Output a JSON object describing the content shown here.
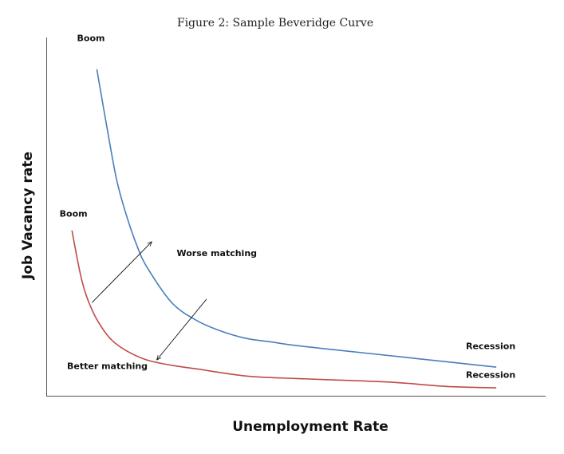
{
  "caption": "Figure 2: Sample Beveridge Curve",
  "chart_data": {
    "type": "line",
    "title": "",
    "xlabel": "Unemployment Rate",
    "ylabel": "Job Vacancy rate",
    "xlim": [
      0,
      100
    ],
    "ylim": [
      0,
      100
    ],
    "grid": false,
    "legend": "none",
    "series": [
      {
        "color": "#4a7ebb",
        "x": [
          10,
          12,
          14,
          16,
          18,
          20,
          25,
          30,
          35,
          40,
          45,
          50,
          60,
          70,
          80,
          90
        ],
        "y": [
          91,
          75,
          60,
          50,
          42,
          36,
          26,
          21,
          18,
          16,
          15,
          14,
          12.5,
          11,
          9.5,
          8
        ]
      },
      {
        "color": "#be4b48",
        "x": [
          5,
          7,
          9,
          11,
          13,
          16,
          20,
          25,
          30,
          40,
          50,
          60,
          70,
          80,
          90
        ],
        "y": [
          46,
          32,
          24,
          19,
          15.5,
          12.5,
          10,
          8.5,
          7.5,
          5.5,
          4.8,
          4.3,
          3.7,
          2.6,
          2.2
        ]
      }
    ],
    "arrows": [
      {
        "from": [
          9,
          26
        ],
        "to": [
          21,
          43
        ]
      },
      {
        "from": [
          32,
          27
        ],
        "to": [
          22,
          10
        ]
      }
    ],
    "annotations": [
      {
        "text": "Boom",
        "x": 6,
        "y": 99
      },
      {
        "text": "Boom",
        "x": 2.5,
        "y": 50
      },
      {
        "text": "Worse matching",
        "x": 26,
        "y": 39
      },
      {
        "text": "Better matching",
        "x": 4,
        "y": 7.5
      },
      {
        "text": "Recession",
        "x": 84,
        "y": 13
      },
      {
        "text": "Recession",
        "x": 84,
        "y": 5
      }
    ]
  }
}
